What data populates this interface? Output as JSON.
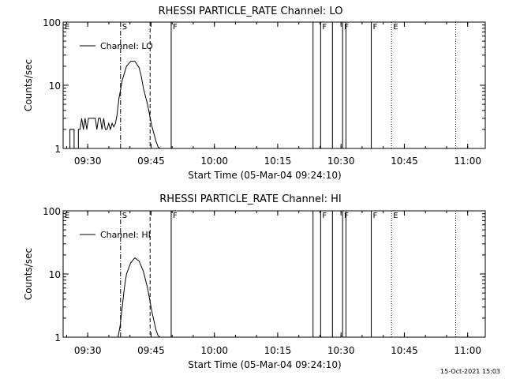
{
  "footer": {
    "date": "15-Oct-2021 15:03"
  },
  "chart_data": [
    {
      "type": "line",
      "title": "RHESSI PARTICLE_RATE Channel: LO",
      "xlabel": "Start Time (05-Mar-04 09:24:10)",
      "ylabel": "Counts/sec",
      "x_unit": "minutes since 09:24:10",
      "xlim": [
        0,
        100
      ],
      "ylim": [
        1,
        100
      ],
      "yscale": "log",
      "x_ticks": [
        {
          "label": "09:30",
          "value": 5.83
        },
        {
          "label": "09:45",
          "value": 20.83
        },
        {
          "label": "10:00",
          "value": 35.83
        },
        {
          "label": "10:15",
          "value": 50.83
        },
        {
          "label": "10:30",
          "value": 65.83
        },
        {
          "label": "10:45",
          "value": 80.83
        },
        {
          "label": "11:00",
          "value": 95.83
        }
      ],
      "y_ticks": [
        {
          "label": "1",
          "value": 1
        },
        {
          "label": "10",
          "value": 10
        },
        {
          "label": "100",
          "value": 100
        }
      ],
      "legend": {
        "label": "Channel: LO",
        "position": "top-left"
      },
      "series": [
        {
          "name": "Channel: LO",
          "x": [
            1.6,
            1.6,
            2.6,
            2.6,
            3.6,
            3.6,
            4.0,
            4.4,
            4.8,
            5.2,
            5.6,
            6.0,
            6.4,
            6.8,
            7.2,
            7.6,
            8.0,
            8.4,
            8.8,
            9.2,
            9.6,
            10.0,
            10.4,
            10.8,
            11.2,
            11.6,
            12.0,
            12.4,
            12.8,
            13.2,
            14.0,
            15.0,
            16.0,
            17.0,
            18.0,
            18.5,
            19.0,
            20.0,
            21.0,
            22.0,
            22.5,
            23.0,
            23.5
          ],
          "y": [
            1,
            2,
            2,
            1,
            1,
            2,
            2,
            3,
            2,
            3,
            2,
            3,
            3,
            3,
            3,
            3,
            2,
            3,
            3,
            2,
            3,
            2,
            2,
            2.5,
            2,
            2.5,
            2.2,
            2.5,
            3.5,
            6,
            12,
            20,
            24,
            24,
            19,
            14,
            9,
            5,
            2.3,
            1.3,
            1.05,
            1,
            1
          ]
        }
      ],
      "event_markers": [
        {
          "label": "E",
          "value": 0,
          "style": "solid"
        },
        {
          "label": "S",
          "value": 13.6,
          "style": "dashdot"
        },
        {
          "label": "",
          "value": 20.6,
          "style": "dashed"
        },
        {
          "label": "F",
          "value": 25.6,
          "style": "solid"
        },
        {
          "label": "",
          "value": 59.2,
          "style": "solid"
        },
        {
          "label": "F",
          "value": 61.0,
          "style": "solid"
        },
        {
          "label": "",
          "value": 63.8,
          "style": "solid"
        },
        {
          "label": "F",
          "value": 66.2,
          "style": "solid"
        },
        {
          "label": "",
          "value": 67.0,
          "style": "solid"
        },
        {
          "label": "F",
          "value": 73.0,
          "style": "solid"
        },
        {
          "label": "E",
          "value": 77.8,
          "style": "dotted"
        },
        {
          "label": "",
          "value": 93.0,
          "style": "dotted"
        }
      ]
    },
    {
      "type": "line",
      "title": "RHESSI PARTICLE_RATE Channel: HI",
      "xlabel": "Start Time (05-Mar-04 09:24:10)",
      "ylabel": "Counts/sec",
      "x_unit": "minutes since 09:24:10",
      "xlim": [
        0,
        100
      ],
      "ylim": [
        1,
        100
      ],
      "yscale": "log",
      "x_ticks": [
        {
          "label": "09:30",
          "value": 5.83
        },
        {
          "label": "09:45",
          "value": 20.83
        },
        {
          "label": "10:00",
          "value": 35.83
        },
        {
          "label": "10:15",
          "value": 50.83
        },
        {
          "label": "10:30",
          "value": 65.83
        },
        {
          "label": "10:45",
          "value": 80.83
        },
        {
          "label": "11:00",
          "value": 95.83
        }
      ],
      "y_ticks": [
        {
          "label": "1",
          "value": 1
        },
        {
          "label": "10",
          "value": 10
        },
        {
          "label": "100",
          "value": 100
        }
      ],
      "legend": {
        "label": "Channel: HI",
        "position": "top-left"
      },
      "series": [
        {
          "name": "Channel: HI",
          "x": [
            13.0,
            13.5,
            14.0,
            14.5,
            15.0,
            16.0,
            17.0,
            18.0,
            19.0,
            20.0,
            21.0,
            22.0,
            22.5,
            23.0
          ],
          "y": [
            1,
            1.5,
            3,
            6,
            10,
            15,
            18,
            16,
            11,
            6,
            2.6,
            1.3,
            1.05,
            1
          ]
        }
      ],
      "event_markers": [
        {
          "label": "E",
          "value": 0,
          "style": "solid"
        },
        {
          "label": "S",
          "value": 13.6,
          "style": "dashdot"
        },
        {
          "label": "",
          "value": 20.6,
          "style": "dashed"
        },
        {
          "label": "F",
          "value": 25.6,
          "style": "solid"
        },
        {
          "label": "",
          "value": 59.2,
          "style": "solid"
        },
        {
          "label": "F",
          "value": 61.0,
          "style": "solid"
        },
        {
          "label": "",
          "value": 63.8,
          "style": "solid"
        },
        {
          "label": "F",
          "value": 66.2,
          "style": "solid"
        },
        {
          "label": "",
          "value": 67.0,
          "style": "solid"
        },
        {
          "label": "F",
          "value": 73.0,
          "style": "solid"
        },
        {
          "label": "E",
          "value": 77.8,
          "style": "dotted"
        },
        {
          "label": "",
          "value": 93.0,
          "style": "dotted"
        }
      ]
    }
  ]
}
